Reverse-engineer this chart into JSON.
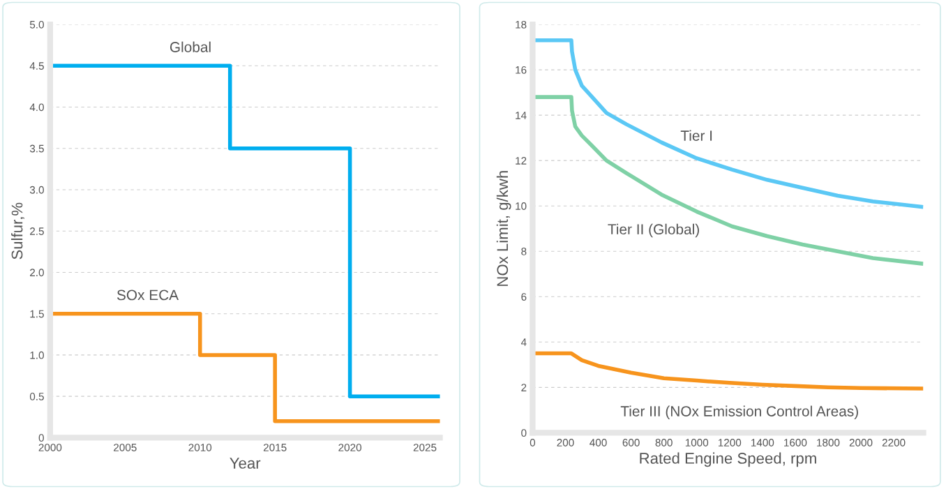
{
  "chart_data": [
    {
      "type": "step",
      "xlabel": "Year",
      "ylabel": "Sulfur,%",
      "xlim": [
        2000,
        2026
      ],
      "ylim": [
        0,
        5
      ],
      "xticks": [
        2000,
        2005,
        2010,
        2015,
        2020,
        2025
      ],
      "yticks": [
        0,
        {
          "value": 0.5,
          "label": "0.5"
        },
        {
          "value": 1,
          "label": "1.0"
        },
        {
          "value": 1.5,
          "label": "1.5"
        },
        {
          "value": 2,
          "label": "2.0"
        },
        {
          "value": 2.5,
          "label": "2.5"
        },
        {
          "value": 3,
          "label": "3.0"
        },
        {
          "value": 3.5,
          "label": "3.5"
        },
        {
          "value": 4,
          "label": "4.0"
        },
        {
          "value": 4.5,
          "label": "4.5"
        },
        {
          "value": 5,
          "label": "5.0"
        }
      ],
      "grid": "y",
      "legend": false,
      "series": [
        {
          "name": "Global",
          "color": "#00aeef",
          "x": [
            2000,
            2012,
            2020,
            2026
          ],
          "values": [
            4.5,
            3.5,
            0.5,
            0.5
          ]
        },
        {
          "name": "SOx ECA",
          "color": "#f7941d",
          "x": [
            2000,
            2010,
            2015,
            2026
          ],
          "values": [
            1.5,
            1.0,
            0.2,
            0.2
          ]
        }
      ]
    },
    {
      "type": "line",
      "xlabel": "Rated Engine Speed, rpm",
      "ylabel": "NOx Limit, g/kwh",
      "xlim": [
        0,
        2380
      ],
      "ylim": [
        0,
        18
      ],
      "xticks": [
        0,
        200,
        400,
        600,
        800,
        1000,
        1200,
        1400,
        1600,
        1800,
        2000,
        2200
      ],
      "yticks": [
        0,
        2,
        4,
        6,
        8,
        10,
        12,
        14,
        16,
        18
      ],
      "grid": "y",
      "legend": false,
      "series": [
        {
          "name": "Tier I",
          "color": "#5bc8f5",
          "x": [
            0,
            236,
            240,
            260,
            300,
            356,
            450,
            571,
            785,
            1000,
            1215,
            1429,
            1644,
            1858,
            2073,
            2380
          ],
          "values": [
            17.3,
            17.3,
            16.8,
            16.0,
            15.3,
            14.85,
            14.1,
            13.6,
            12.8,
            12.1,
            11.6,
            11.15,
            10.8,
            10.45,
            10.2,
            9.95
          ]
        },
        {
          "name": "Tier II (Global)",
          "color": "#7fd1a6",
          "x": [
            0,
            236,
            240,
            260,
            300,
            356,
            450,
            571,
            785,
            1000,
            1215,
            1429,
            1644,
            1858,
            2073,
            2380
          ],
          "values": [
            14.8,
            14.8,
            14.2,
            13.5,
            13.1,
            12.7,
            12.0,
            11.45,
            10.5,
            9.75,
            9.1,
            8.67,
            8.3,
            8.0,
            7.7,
            7.45
          ]
        },
        {
          "name": "Tier III (NOx Emission Control Areas)",
          "color": "#f7941d",
          "x": [
            0,
            236,
            300,
            400,
            600,
            800,
            1000,
            1200,
            1400,
            1600,
            1800,
            2000,
            2380
          ],
          "values": [
            3.5,
            3.5,
            3.2,
            2.95,
            2.65,
            2.4,
            2.3,
            2.2,
            2.12,
            2.06,
            2.0,
            1.97,
            1.95
          ]
        }
      ]
    }
  ]
}
